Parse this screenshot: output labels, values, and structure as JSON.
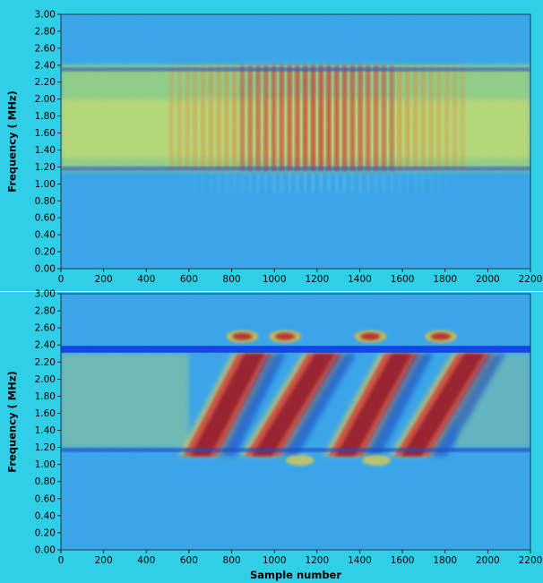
{
  "chart_data": [
    {
      "type": "heatmap",
      "title": "",
      "xlabel": "",
      "ylabel": "Frequency ( MHz)",
      "xlim": [
        0,
        2200
      ],
      "ylim": [
        0.0,
        3.0
      ],
      "x_ticks": [
        "0",
        "200",
        "400",
        "600",
        "800",
        "1000",
        "1200",
        "1400",
        "1600",
        "1800",
        "2000",
        "2200"
      ],
      "y_ticks": [
        "0.00",
        "0.20",
        "0.40",
        "0.60",
        "0.80",
        "1.00",
        "1.20",
        "1.40",
        "1.60",
        "1.80",
        "2.00",
        "2.20",
        "2.40",
        "2.60",
        "2.80",
        "3.00"
      ],
      "colormap": "jet",
      "background_color": "#3aa6e6",
      "frame_color": "#2fd0e8",
      "features": {
        "signal_band_mhz": [
          1.15,
          2.4
        ],
        "notch_lines_mhz": [
          1.18,
          2.35
        ],
        "stripe_region_samples": [
          500,
          1900
        ],
        "stripe_peak_sample": 1200,
        "stripe_count": 38
      }
    },
    {
      "type": "heatmap",
      "title": "",
      "xlabel": "Sample number",
      "ylabel": "Frequency ( MHz)",
      "xlim": [
        0,
        2200
      ],
      "ylim": [
        0.0,
        3.0
      ],
      "x_ticks": [
        "0",
        "200",
        "400",
        "600",
        "800",
        "1000",
        "1200",
        "1400",
        "1600",
        "1800",
        "2000",
        "2200"
      ],
      "y_ticks": [
        "0.00",
        "0.20",
        "0.40",
        "0.60",
        "0.80",
        "1.00",
        "1.20",
        "1.40",
        "1.60",
        "1.80",
        "2.00",
        "2.20",
        "2.40",
        "2.60",
        "2.80",
        "3.00"
      ],
      "colormap": "jet",
      "background_color": "#3aa6e6",
      "frame_color": "#2fd0e8",
      "features": {
        "strong_band_mhz": [
          2.31,
          2.39
        ],
        "notch_line_mhz": 1.17,
        "chirps": [
          {
            "x_start": 590,
            "x_end": 970,
            "f_start": 1.1,
            "f_end": 2.3
          },
          {
            "x_start": 880,
            "x_end": 1300,
            "f_start": 1.1,
            "f_end": 2.3
          },
          {
            "x_start": 1270,
            "x_end": 1660,
            "f_start": 1.1,
            "f_end": 2.3
          },
          {
            "x_start": 1580,
            "x_end": 2000,
            "f_start": 1.1,
            "f_end": 2.3
          }
        ],
        "upper_blobs": [
          {
            "x": 850,
            "f": 2.5
          },
          {
            "x": 1050,
            "f": 2.5
          },
          {
            "x": 1450,
            "f": 2.5
          },
          {
            "x": 1780,
            "f": 2.5
          }
        ],
        "lower_blobs": [
          {
            "x": 1120,
            "f": 1.05
          },
          {
            "x": 1480,
            "f": 1.05
          }
        ]
      }
    }
  ]
}
